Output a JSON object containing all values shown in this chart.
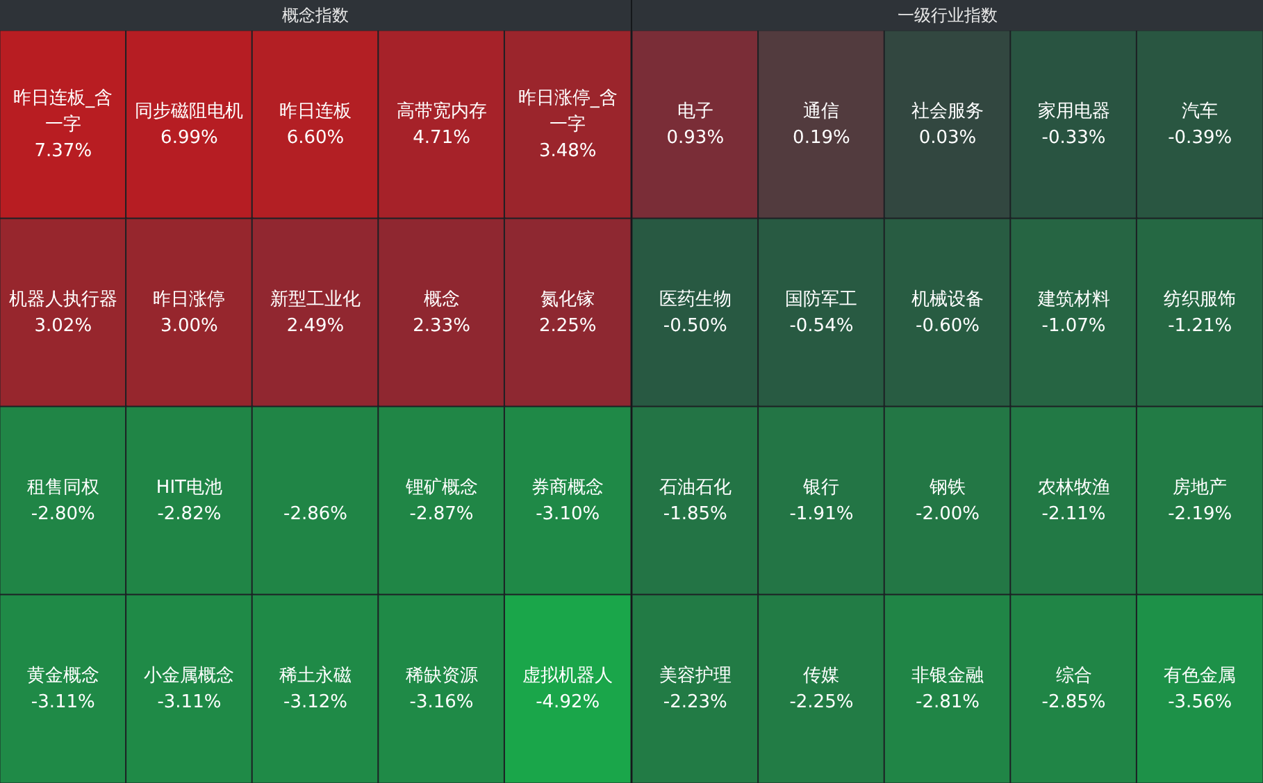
{
  "chart_data": [
    {
      "type": "other",
      "title": "概念指数",
      "categories": [
        "昨日连板_含一字",
        "同步磁阻电机",
        "昨日连板",
        "高带宽内存",
        "昨日涨停_含一字",
        "机器人执行器",
        "昨日涨停",
        "新型工业化",
        "概念",
        "氮化镓",
        "租售同权",
        "HIT电池",
        null,
        "锂矿概念",
        "券商概念",
        "黄金概念",
        "小金属概念",
        "稀土永磁",
        "稀缺资源",
        "虚拟机器人"
      ],
      "values": [
        7.37,
        6.99,
        6.6,
        4.71,
        3.48,
        3.02,
        3.0,
        2.49,
        2.33,
        2.25,
        -2.8,
        -2.82,
        -2.86,
        -2.87,
        -3.1,
        -3.11,
        -3.11,
        -3.12,
        -3.16,
        -4.92
      ],
      "value_labels": [
        "7.37%",
        "6.99%",
        "6.60%",
        "4.71%",
        "3.48%",
        "3.02%",
        "3.00%",
        "2.49%",
        "2.33%",
        "2.25%",
        "-2.80%",
        "-2.82%",
        "-2.86%",
        "-2.87%",
        "-3.10%",
        "-3.11%",
        "-3.11%",
        "-3.12%",
        "-3.16%",
        "-4.92%"
      ]
    },
    {
      "type": "other",
      "title": "一级行业指数",
      "categories": [
        "电子",
        "通信",
        "社会服务",
        "家用电器",
        "汽车",
        "医药生物",
        "国防军工",
        "机械设备",
        "建筑材料",
        "纺织服饰",
        "石油石化",
        "银行",
        "钢铁",
        "农林牧渔",
        "房地产",
        "美容护理",
        "传媒",
        "非银金融",
        "综合",
        "有色金属"
      ],
      "values": [
        0.93,
        0.19,
        0.03,
        -0.33,
        -0.39,
        -0.5,
        -0.54,
        -0.6,
        -1.07,
        -1.21,
        -1.85,
        -1.91,
        -2.0,
        -2.11,
        -2.19,
        -2.23,
        -2.25,
        -2.81,
        -2.85,
        -3.56
      ],
      "value_labels": [
        "0.93%",
        "0.19%",
        "0.03%",
        "-0.33%",
        "-0.39%",
        "-0.50%",
        "-0.54%",
        "-0.60%",
        "-1.07%",
        "-1.21%",
        "-1.85%",
        "-1.91%",
        "-2.00%",
        "-2.11%",
        "-2.19%",
        "-2.23%",
        "-2.25%",
        "-2.81%",
        "-2.85%",
        "-3.56%"
      ]
    }
  ]
}
